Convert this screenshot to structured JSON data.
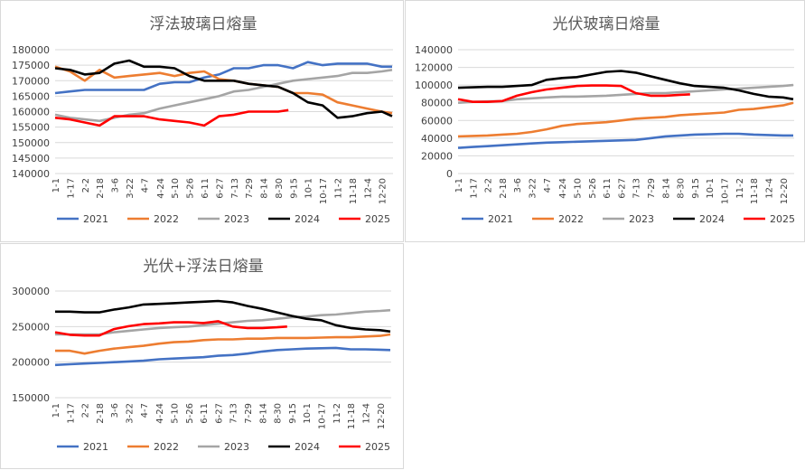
{
  "chart_data": [
    {
      "type": "line",
      "title": "浮法玻璃日熔量",
      "ylim": [
        140000,
        180000
      ],
      "yticks": [
        140000,
        145000,
        150000,
        155000,
        160000,
        165000,
        170000,
        175000,
        180000
      ],
      "x_tick_labels": [
        "1-1",
        "1-17",
        "2-2",
        "2-18",
        "3-6",
        "3-22",
        "4-7",
        "4-24",
        "5-10",
        "5-26",
        "6-11",
        "6-27",
        "7-13",
        "7-29",
        "8-14",
        "8-30",
        "9-15",
        "10-1",
        "10-17",
        "11-2",
        "11-18",
        "12-4",
        "12-20"
      ],
      "grid": true,
      "legend": "bottom",
      "series": [
        {
          "name": "2021",
          "color": "#4472c4",
          "x": [
            "1-1",
            "1-17",
            "2-2",
            "2-18",
            "3-6",
            "3-22",
            "4-7",
            "4-24",
            "5-10",
            "5-26",
            "6-11",
            "6-27",
            "7-13",
            "7-29",
            "8-14",
            "8-30",
            "9-15",
            "10-1",
            "10-17",
            "11-2",
            "11-18",
            "12-4",
            "12-20",
            "12-31"
          ],
          "values": [
            166000,
            166500,
            167000,
            167000,
            167000,
            167000,
            167000,
            169000,
            169500,
            169500,
            171000,
            172000,
            174000,
            174000,
            175000,
            175000,
            174000,
            176000,
            175000,
            175500,
            175500,
            175500,
            174500,
            174500
          ]
        },
        {
          "name": "2022",
          "color": "#ed7d31",
          "x": [
            "1-1",
            "1-17",
            "2-2",
            "2-18",
            "3-6",
            "3-22",
            "4-7",
            "4-24",
            "5-10",
            "5-26",
            "6-11",
            "6-27",
            "7-13",
            "7-29",
            "8-14",
            "8-30",
            "9-15",
            "10-1",
            "10-17",
            "11-2",
            "11-18",
            "12-4",
            "12-20",
            "12-31"
          ],
          "values": [
            174500,
            173000,
            170000,
            173500,
            171000,
            171500,
            172000,
            172500,
            171500,
            172500,
            173000,
            170500,
            170000,
            169000,
            168500,
            168000,
            166000,
            166000,
            165500,
            163000,
            162000,
            161000,
            160000,
            159500
          ]
        },
        {
          "name": "2023",
          "color": "#a5a5a5",
          "x": [
            "1-1",
            "1-17",
            "2-2",
            "2-18",
            "3-6",
            "3-22",
            "4-7",
            "4-24",
            "5-10",
            "5-26",
            "6-11",
            "6-27",
            "7-13",
            "7-29",
            "8-14",
            "8-30",
            "9-15",
            "10-1",
            "10-17",
            "11-2",
            "11-18",
            "12-4",
            "12-20",
            "12-31"
          ],
          "values": [
            159000,
            158000,
            157500,
            157000,
            158000,
            159000,
            159500,
            161000,
            162000,
            163000,
            164000,
            165000,
            166500,
            167000,
            168000,
            169000,
            170000,
            170500,
            171000,
            171500,
            172500,
            172500,
            173000,
            173500
          ]
        },
        {
          "name": "2024",
          "color": "#000000",
          "x": [
            "1-1",
            "1-17",
            "2-2",
            "2-18",
            "3-6",
            "3-22",
            "4-7",
            "4-24",
            "5-10",
            "5-26",
            "6-11",
            "6-27",
            "7-13",
            "7-29",
            "8-14",
            "8-30",
            "9-15",
            "10-1",
            "10-17",
            "11-2",
            "11-18",
            "12-4",
            "12-20",
            "12-31"
          ],
          "values": [
            174000,
            173500,
            172000,
            172500,
            175500,
            176500,
            174500,
            174500,
            174000,
            171500,
            170000,
            170000,
            170000,
            169000,
            168500,
            168000,
            166000,
            163000,
            162000,
            158000,
            158500,
            159500,
            160000,
            158500
          ]
        },
        {
          "name": "2025",
          "color": "#ff0000",
          "x": [
            "1-1",
            "1-17",
            "2-2",
            "2-18",
            "3-6",
            "3-22",
            "4-7",
            "4-24",
            "5-10",
            "5-26",
            "6-11",
            "6-27",
            "7-13",
            "7-29",
            "8-14",
            "8-30",
            "9-10"
          ],
          "values": [
            158000,
            157500,
            156500,
            155500,
            158500,
            158500,
            158500,
            157500,
            157000,
            156500,
            155500,
            158500,
            159000,
            160000,
            160000,
            160000,
            160500
          ]
        }
      ]
    },
    {
      "type": "line",
      "title": "光伏玻璃日熔量",
      "ylim": [
        0,
        140000
      ],
      "yticks": [
        0,
        20000,
        40000,
        60000,
        80000,
        100000,
        120000,
        140000
      ],
      "x_tick_labels": [
        "1-1",
        "1-17",
        "2-2",
        "2-18",
        "3-6",
        "3-22",
        "4-7",
        "4-24",
        "5-10",
        "5-26",
        "6-11",
        "6-27",
        "7-13",
        "7-29",
        "8-14",
        "8-30",
        "9-15",
        "10-1",
        "10-17",
        "11-2",
        "11-18",
        "12-4",
        "12-20"
      ],
      "grid": true,
      "legend": "bottom",
      "series": [
        {
          "name": "2021",
          "color": "#4472c4",
          "x": [
            "1-1",
            "1-17",
            "2-2",
            "2-18",
            "3-6",
            "3-22",
            "4-7",
            "4-24",
            "5-10",
            "5-26",
            "6-11",
            "6-27",
            "7-13",
            "7-29",
            "8-14",
            "8-30",
            "9-15",
            "10-1",
            "10-17",
            "11-2",
            "11-18",
            "12-4",
            "12-20",
            "12-31"
          ],
          "values": [
            29000,
            30000,
            31000,
            32000,
            33000,
            34000,
            35000,
            35500,
            36000,
            36500,
            37000,
            37500,
            38000,
            40000,
            42000,
            43000,
            44000,
            44500,
            45000,
            45000,
            44000,
            43500,
            43000,
            43000
          ]
        },
        {
          "name": "2022",
          "color": "#ed7d31",
          "x": [
            "1-1",
            "1-17",
            "2-2",
            "2-18",
            "3-6",
            "3-22",
            "4-7",
            "4-24",
            "5-10",
            "5-26",
            "6-11",
            "6-27",
            "7-13",
            "7-29",
            "8-14",
            "8-30",
            "9-15",
            "10-1",
            "10-17",
            "11-2",
            "11-18",
            "12-4",
            "12-20",
            "12-31"
          ],
          "values": [
            42000,
            42500,
            43000,
            44000,
            45000,
            47000,
            50000,
            54000,
            56000,
            57000,
            58000,
            60000,
            62000,
            63000,
            64000,
            66000,
            67000,
            68000,
            69000,
            72000,
            73000,
            75000,
            77000,
            80000
          ]
        },
        {
          "name": "2023",
          "color": "#a5a5a5",
          "x": [
            "1-1",
            "1-17",
            "2-2",
            "2-18",
            "3-6",
            "3-22",
            "4-7",
            "4-24",
            "5-10",
            "5-26",
            "6-11",
            "6-27",
            "7-13",
            "7-29",
            "8-14",
            "8-30",
            "9-15",
            "10-1",
            "10-17",
            "11-2",
            "11-18",
            "12-4",
            "12-20",
            "12-31"
          ],
          "values": [
            80000,
            81000,
            81500,
            82000,
            84000,
            85000,
            86000,
            87000,
            87000,
            87500,
            88000,
            89000,
            90000,
            91000,
            91000,
            92000,
            93000,
            94000,
            95000,
            96000,
            97000,
            98000,
            99000,
            100000
          ]
        },
        {
          "name": "2024",
          "color": "#000000",
          "x": [
            "1-1",
            "1-17",
            "2-2",
            "2-18",
            "3-6",
            "3-22",
            "4-7",
            "4-24",
            "5-10",
            "5-26",
            "6-11",
            "6-27",
            "7-13",
            "7-29",
            "8-14",
            "8-30",
            "9-15",
            "10-1",
            "10-17",
            "11-2",
            "11-18",
            "12-4",
            "12-20",
            "12-31"
          ],
          "values": [
            97000,
            97500,
            98000,
            98000,
            99000,
            100000,
            106000,
            108000,
            109000,
            112000,
            115000,
            116000,
            114000,
            110000,
            106000,
            102000,
            99000,
            98000,
            97000,
            94000,
            90000,
            87000,
            86000,
            84000
          ]
        },
        {
          "name": "2025",
          "color": "#ff0000",
          "x": [
            "1-1",
            "1-17",
            "2-2",
            "2-18",
            "3-6",
            "3-22",
            "4-7",
            "4-24",
            "5-10",
            "5-26",
            "6-11",
            "6-27",
            "7-13",
            "7-29",
            "8-14",
            "8-30",
            "9-10"
          ],
          "values": [
            84000,
            81000,
            81000,
            82000,
            88000,
            92000,
            95000,
            97000,
            99000,
            99500,
            99500,
            99000,
            91000,
            88000,
            88000,
            89000,
            89500
          ]
        }
      ]
    },
    {
      "type": "line",
      "title": "光伏+浮法日熔量",
      "ylim": [
        150000,
        300000
      ],
      "yticks": [
        150000,
        200000,
        250000,
        300000
      ],
      "x_tick_labels": [
        "1-1",
        "1-17",
        "2-2",
        "2-18",
        "3-6",
        "3-22",
        "4-7",
        "4-24",
        "5-10",
        "5-26",
        "6-11",
        "6-27",
        "7-13",
        "7-29",
        "8-14",
        "8-30",
        "9-15",
        "10-1",
        "10-17",
        "11-2",
        "11-18",
        "12-4",
        "12-20"
      ],
      "grid": true,
      "legend": "bottom",
      "series": [
        {
          "name": "2021",
          "color": "#4472c4",
          "x": [
            "1-1",
            "1-17",
            "2-2",
            "2-18",
            "3-6",
            "3-22",
            "4-7",
            "4-24",
            "5-10",
            "5-26",
            "6-11",
            "6-27",
            "7-13",
            "7-29",
            "8-14",
            "8-30",
            "9-15",
            "10-1",
            "10-17",
            "11-2",
            "11-18",
            "12-4",
            "12-20",
            "12-31"
          ],
          "values": [
            196000,
            197000,
            198000,
            199000,
            200000,
            201000,
            202000,
            204000,
            205000,
            206000,
            207000,
            209000,
            210000,
            212000,
            215000,
            217000,
            218000,
            219000,
            219500,
            220000,
            218000,
            218000,
            217500,
            217000
          ]
        },
        {
          "name": "2022",
          "color": "#ed7d31",
          "x": [
            "1-1",
            "1-17",
            "2-2",
            "2-18",
            "3-6",
            "3-22",
            "4-7",
            "4-24",
            "5-10",
            "5-26",
            "6-11",
            "6-27",
            "7-13",
            "7-29",
            "8-14",
            "8-30",
            "9-15",
            "10-1",
            "10-17",
            "11-2",
            "11-18",
            "12-4",
            "12-20",
            "12-31"
          ],
          "values": [
            216000,
            216000,
            212000,
            216000,
            219000,
            221000,
            223000,
            226000,
            228000,
            229000,
            231000,
            232000,
            232000,
            233000,
            233000,
            234000,
            234000,
            234000,
            234500,
            235000,
            235000,
            236000,
            237000,
            239000
          ]
        },
        {
          "name": "2023",
          "color": "#a5a5a5",
          "x": [
            "1-1",
            "1-17",
            "2-2",
            "2-18",
            "3-6",
            "3-22",
            "4-7",
            "4-24",
            "5-10",
            "5-26",
            "6-11",
            "6-27",
            "7-13",
            "7-29",
            "8-14",
            "8-30",
            "9-15",
            "10-1",
            "10-17",
            "11-2",
            "11-18",
            "12-4",
            "12-20",
            "12-31"
          ],
          "values": [
            239000,
            239000,
            239000,
            239000,
            242000,
            244000,
            246000,
            248000,
            249000,
            250000,
            252000,
            254000,
            256000,
            258000,
            259000,
            261000,
            263000,
            264000,
            266000,
            267000,
            269000,
            271000,
            272000,
            273000
          ]
        },
        {
          "name": "2024",
          "color": "#000000",
          "x": [
            "1-1",
            "1-17",
            "2-2",
            "2-18",
            "3-6",
            "3-22",
            "4-7",
            "4-24",
            "5-10",
            "5-26",
            "6-11",
            "6-27",
            "7-13",
            "7-29",
            "8-14",
            "8-30",
            "9-15",
            "10-1",
            "10-17",
            "11-2",
            "11-18",
            "12-4",
            "12-20",
            "12-31"
          ],
          "values": [
            271000,
            271000,
            270000,
            270000,
            274000,
            277000,
            281000,
            282000,
            283000,
            284000,
            285000,
            286000,
            284000,
            279000,
            275000,
            270000,
            265000,
            261000,
            259000,
            252000,
            248000,
            246000,
            245000,
            243000
          ]
        },
        {
          "name": "2025",
          "color": "#ff0000",
          "x": [
            "1-1",
            "1-17",
            "2-2",
            "2-18",
            "3-6",
            "3-22",
            "4-7",
            "4-24",
            "5-10",
            "5-26",
            "6-11",
            "6-27",
            "7-13",
            "7-29",
            "8-14",
            "8-30",
            "9-10"
          ],
          "values": [
            242000,
            238500,
            237500,
            237500,
            246500,
            250500,
            253500,
            254500,
            256000,
            256000,
            255000,
            257500,
            250000,
            248000,
            248000,
            249000,
            250000
          ]
        }
      ]
    }
  ]
}
